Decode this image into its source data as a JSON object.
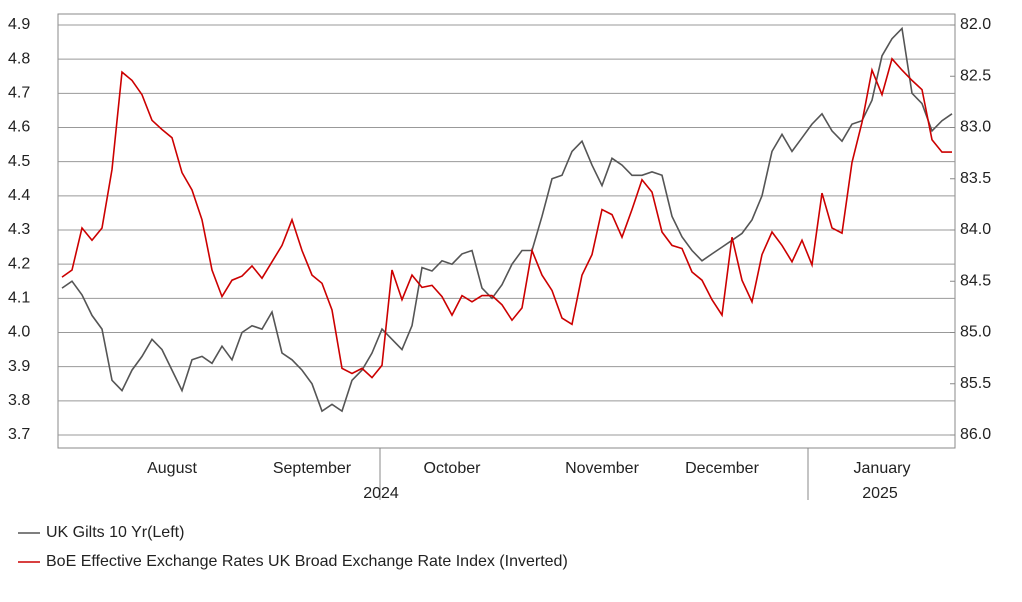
{
  "chart_data": {
    "type": "line",
    "legend": "bottom",
    "grid": true,
    "y2_inverted": true,
    "categories": [
      null,
      null,
      null,
      null,
      null,
      null,
      null,
      null,
      null,
      null,
      null,
      "August",
      null,
      null,
      null,
      null,
      null,
      null,
      null,
      null,
      null,
      null,
      null,
      null,
      null,
      "September",
      null,
      null,
      null,
      null,
      null,
      null,
      null,
      null,
      null,
      null,
      null,
      null,
      null,
      "October",
      null,
      null,
      null,
      null,
      null,
      null,
      null,
      null,
      null,
      null,
      null,
      null,
      null,
      null,
      "November",
      null,
      null,
      null,
      null,
      null,
      null,
      null,
      null,
      null,
      null,
      null,
      "December",
      null,
      null,
      null,
      null,
      null,
      null,
      null,
      null,
      null,
      null,
      null,
      null,
      null,
      null,
      null,
      "January",
      null,
      null,
      null,
      null,
      null,
      null,
      null
    ],
    "year_labels": [
      "2024",
      "2025"
    ],
    "ylim": [
      3.7,
      4.9
    ],
    "yticks": [
      3.7,
      3.8,
      3.9,
      {
        "value": 4,
        "label": "4.0"
      },
      4.1,
      4.2,
      4.3,
      4.4,
      4.5,
      4.6,
      4.7,
      4.8,
      4.9
    ],
    "y2lim": [
      82,
      86
    ],
    "y2ticks": [
      {
        "value": 82,
        "label": "82.0"
      },
      82.5,
      {
        "value": 83,
        "label": "83.0"
      },
      83.5,
      {
        "value": 84,
        "label": "84.0"
      },
      84.5,
      {
        "value": 85,
        "label": "85.0"
      },
      85.5,
      {
        "value": 86,
        "label": "86.0"
      }
    ],
    "series": [
      {
        "name": "UK Gilts 10 Yr(Left)",
        "color": "#555555",
        "values": [
          4.13,
          4.15,
          4.11,
          4.05,
          4.01,
          3.86,
          3.83,
          3.89,
          3.93,
          3.98,
          3.95,
          3.89,
          3.83,
          3.92,
          3.93,
          3.91,
          3.96,
          3.92,
          4.0,
          4.02,
          4.01,
          4.06,
          3.94,
          3.92,
          3.89,
          3.85,
          3.77,
          3.79,
          3.77,
          3.86,
          3.89,
          3.94,
          4.01,
          3.98,
          3.95,
          4.02,
          4.19,
          4.18,
          4.21,
          4.2,
          4.23,
          4.24,
          4.13,
          4.1,
          4.14,
          4.2,
          4.24,
          4.24,
          4.34,
          4.45,
          4.46,
          4.53,
          4.56,
          4.49,
          4.43,
          4.51,
          4.49,
          4.46,
          4.46,
          4.47,
          4.46,
          4.34,
          4.28,
          4.24,
          4.21,
          4.23,
          4.25,
          4.27,
          4.29,
          4.33,
          4.4,
          4.53,
          4.58,
          4.53,
          4.57,
          4.61,
          4.64,
          4.59,
          4.56,
          4.61,
          4.62,
          4.68,
          4.81,
          4.86,
          4.89,
          4.7,
          4.67,
          4.59,
          4.62,
          4.64
        ]
      },
      {
        "name": "BoE Effective Exchange Rates UK Broad Exchange Rate Index (Inverted)",
        "color": "#cc0000",
        "axis": "y2",
        "values": [
          84.46,
          84.39,
          83.98,
          84.1,
          83.98,
          83.41,
          82.46,
          82.54,
          82.68,
          82.93,
          83.02,
          83.1,
          83.44,
          83.61,
          83.9,
          84.39,
          84.65,
          84.49,
          84.45,
          84.35,
          84.47,
          84.31,
          84.15,
          83.9,
          84.2,
          84.44,
          84.52,
          84.78,
          85.35,
          85.4,
          85.35,
          85.44,
          85.32,
          84.39,
          84.68,
          84.44,
          84.56,
          84.54,
          84.65,
          84.83,
          84.64,
          84.7,
          84.64,
          84.64,
          84.73,
          84.88,
          84.76,
          84.2,
          84.44,
          84.59,
          84.86,
          84.92,
          84.44,
          84.24,
          83.8,
          83.85,
          84.07,
          83.8,
          83.51,
          83.63,
          84.02,
          84.15,
          84.18,
          84.41,
          84.49,
          84.68,
          84.83,
          84.07,
          84.49,
          84.7,
          84.24,
          84.02,
          84.15,
          84.31,
          84.1,
          84.34,
          83.64,
          83.98,
          84.03,
          83.34,
          82.95,
          82.44,
          82.68,
          82.33,
          82.44,
          82.54,
          82.63,
          83.12,
          83.24,
          83.24
        ]
      }
    ]
  }
}
